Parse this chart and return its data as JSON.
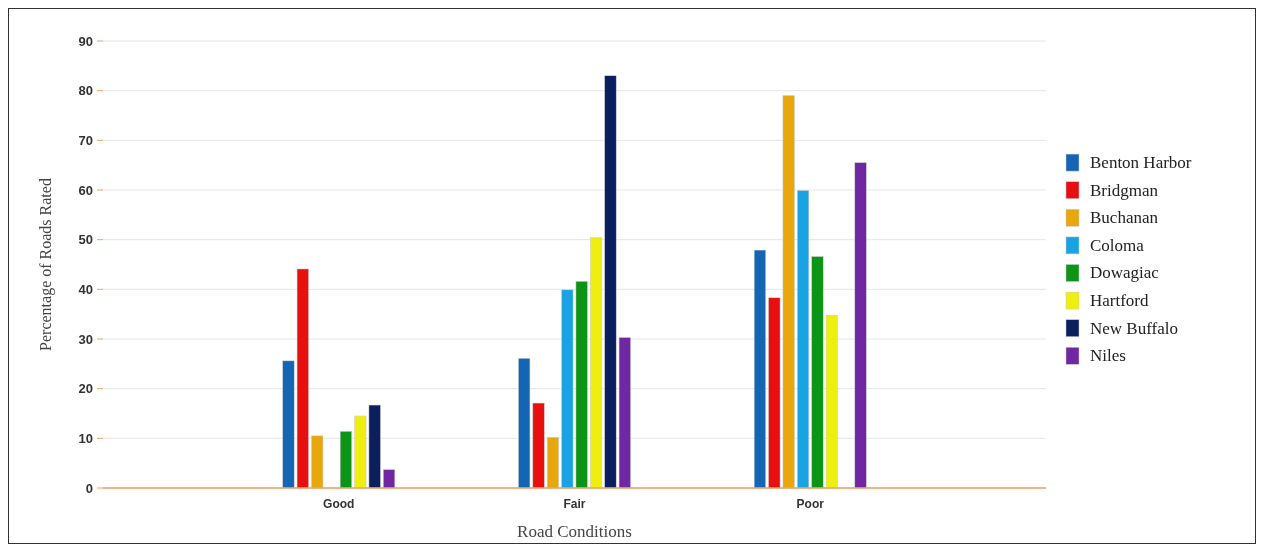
{
  "chart_data": {
    "type": "bar",
    "xlabel": "Road Conditions",
    "ylabel": "Percentage of Roads Rated",
    "categories": [
      "Good",
      "Fair",
      "Poor"
    ],
    "series": [
      {
        "name": "Benton Harbor",
        "color": "#1565b5",
        "values": [
          25.6,
          26.1,
          47.9
        ]
      },
      {
        "name": "Bridgman",
        "color": "#e8100f",
        "values": [
          44.1,
          17.1,
          38.3
        ]
      },
      {
        "name": "Buchanan",
        "color": "#e8a70c",
        "values": [
          10.5,
          10.2,
          79.0
        ]
      },
      {
        "name": "Coloma",
        "color": "#1aa3e3",
        "values": [
          null,
          39.9,
          59.9
        ]
      },
      {
        "name": "Dowagiac",
        "color": "#0b9416",
        "values": [
          11.4,
          41.6,
          46.6
        ]
      },
      {
        "name": "Hartford",
        "color": "#eeee10",
        "values": [
          14.5,
          50.4,
          34.8
        ]
      },
      {
        "name": "New Buffalo",
        "color": "#0b1e5e",
        "values": [
          16.7,
          83.0,
          null
        ]
      },
      {
        "name": "Niles",
        "color": "#6f28a1",
        "values": [
          3.7,
          30.3,
          65.5
        ]
      }
    ],
    "ylim": [
      0,
      90
    ],
    "yticks": [
      0,
      10,
      20,
      30,
      40,
      50,
      60,
      70,
      80,
      90
    ],
    "grid": "y",
    "legend": "right"
  }
}
